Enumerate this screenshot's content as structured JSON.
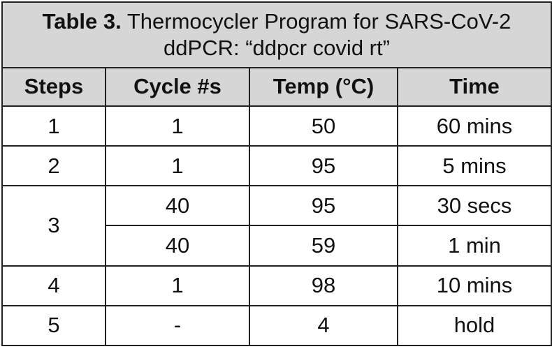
{
  "table": {
    "caption_label": "Table 3.",
    "caption_text_line1": "Thermocycler Program for SARS-CoV-2",
    "caption_text_line2": "ddPCR: “ddpcr covid rt”",
    "headers": [
      "Steps",
      "Cycle #s",
      "Temp (°C)",
      "Time"
    ],
    "rows": [
      {
        "step": "1",
        "cycles": "1",
        "temp": "50",
        "time": "60 mins"
      },
      {
        "step": "2",
        "cycles": "1",
        "temp": "95",
        "time": "5 mins"
      },
      {
        "step": "3",
        "cycles": "40",
        "temp": "95",
        "time": "30 secs"
      },
      {
        "step": "",
        "cycles": "40",
        "temp": "59",
        "time": "1 min"
      },
      {
        "step": "4",
        "cycles": "1",
        "temp": "98",
        "time": "10 mins"
      },
      {
        "step": "5",
        "cycles": "-",
        "temp": "4",
        "time": "hold"
      }
    ]
  }
}
